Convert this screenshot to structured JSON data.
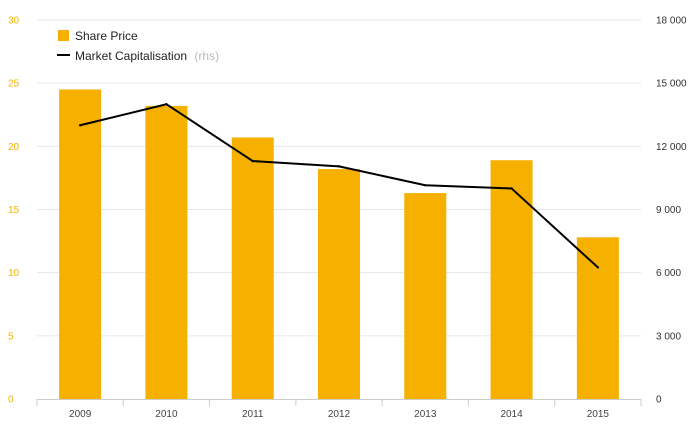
{
  "chart_data": {
    "type": "bar",
    "title": "",
    "categories": [
      "2009",
      "2010",
      "2011",
      "2012",
      "2013",
      "2014",
      "2015"
    ],
    "series": [
      {
        "name": "Share Price",
        "type": "bar",
        "axis": "left",
        "values": [
          24.5,
          23.2,
          20.7,
          18.2,
          16.3,
          18.9,
          12.8
        ]
      },
      {
        "name": "Market Capitalisation",
        "name_note": "(rhs)",
        "type": "line",
        "axis": "right",
        "values": [
          13000,
          14000,
          11300,
          11050,
          10150,
          10000,
          6250
        ]
      }
    ],
    "y_left": {
      "min": 0,
      "max": 30,
      "ticks": [
        0,
        5,
        10,
        15,
        20,
        25,
        30
      ],
      "tick_labels": [
        "0",
        "5",
        "10",
        "15",
        "20",
        "25",
        "30"
      ]
    },
    "y_right": {
      "min": 0,
      "max": 18000,
      "ticks": [
        0,
        3000,
        6000,
        9000,
        12000,
        15000,
        18000
      ],
      "tick_labels": [
        "0",
        "3 000",
        "6 000",
        "9 000",
        "12 000",
        "15 000",
        "18 000"
      ]
    },
    "grid": true,
    "legend_position": "top-left",
    "colors": {
      "bar": "#f5b000",
      "line": "#000000",
      "grid": "#e6e6e6",
      "left_axis_text": "#f0b400",
      "right_axis_text": "#333333"
    }
  }
}
